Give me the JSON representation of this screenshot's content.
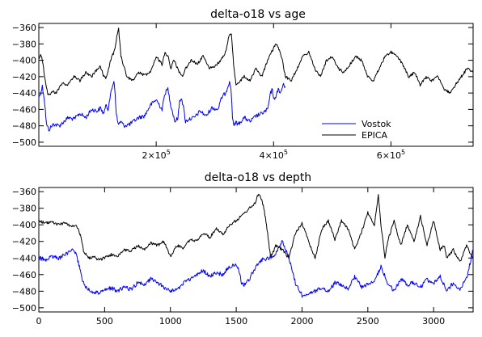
{
  "chart_data": [
    {
      "type": "line",
      "title": "delta-o18 vs age",
      "xlabel": "",
      "ylabel": "",
      "xlim": [
        0,
        740000
      ],
      "ylim": [
        -505,
        -355
      ],
      "x_ticks": [
        {
          "value": 200000,
          "mant": "2×10",
          "exp": "5"
        },
        {
          "value": 400000,
          "mant": "4×10",
          "exp": "5"
        },
        {
          "value": 600000,
          "mant": "6×10",
          "exp": "5"
        }
      ],
      "y_ticks": [
        -360,
        -380,
        -400,
        -420,
        -440,
        -460,
        -480,
        -500
      ],
      "legend": {
        "position": "bottom-right"
      },
      "series": [
        {
          "name": "Vostok",
          "color": "#0000ff",
          "x": [
            0,
            3000,
            6000,
            9000,
            11000,
            13000,
            17000,
            20000,
            25000,
            35000,
            50000,
            60000,
            70000,
            80000,
            90000,
            100000,
            105000,
            110000,
            115000,
            118000,
            120000,
            123000,
            126000,
            128000,
            130000,
            132000,
            135000,
            140000,
            145000,
            155000,
            170000,
            180000,
            190000,
            200000,
            210000,
            215000,
            220000,
            225000,
            232000,
            237000,
            240000,
            243000,
            247000,
            250000,
            255000,
            265000,
            275000,
            285000,
            295000,
            305000,
            312000,
            318000,
            322000,
            325000,
            328000,
            330000,
            333000,
            336000,
            340000,
            350000,
            360000,
            370000,
            380000,
            390000,
            395000,
            398000,
            400000,
            402000,
            405000,
            408000,
            410000,
            413000,
            416000,
            420000
          ],
          "y": [
            -445,
            -440,
            -432,
            -445,
            -460,
            -478,
            -485,
            -482,
            -478,
            -480,
            -470,
            -472,
            -465,
            -470,
            -460,
            -462,
            -458,
            -465,
            -455,
            -460,
            -450,
            -440,
            -430,
            -425,
            -440,
            -465,
            -478,
            -475,
            -480,
            -478,
            -470,
            -468,
            -455,
            -448,
            -460,
            -440,
            -435,
            -455,
            -475,
            -470,
            -450,
            -445,
            -460,
            -475,
            -472,
            -470,
            -462,
            -468,
            -458,
            -460,
            -445,
            -440,
            -432,
            -425,
            -440,
            -470,
            -480,
            -476,
            -478,
            -470,
            -475,
            -468,
            -465,
            -460,
            -440,
            -435,
            -445,
            -450,
            -440,
            -435,
            -440,
            -438,
            -430,
            -432
          ]
        },
        {
          "name": "EPICA",
          "color": "#000000",
          "x": [
            0,
            3000,
            6000,
            9000,
            12000,
            15000,
            18000,
            22000,
            30000,
            40000,
            50000,
            60000,
            70000,
            80000,
            90000,
            100000,
            105000,
            110000,
            115000,
            118000,
            122000,
            125000,
            128000,
            130000,
            133000,
            136000,
            140000,
            150000,
            160000,
            170000,
            180000,
            190000,
            200000,
            210000,
            215000,
            220000,
            225000,
            230000,
            240000,
            245000,
            250000,
            260000,
            270000,
            280000,
            290000,
            300000,
            310000,
            315000,
            320000,
            324000,
            328000,
            332000,
            336000,
            340000,
            350000,
            360000,
            370000,
            380000,
            390000,
            400000,
            405000,
            410000,
            415000,
            420000,
            430000,
            440000,
            450000,
            460000,
            470000,
            480000,
            490000,
            500000,
            510000,
            520000,
            530000,
            540000,
            550000,
            560000,
            570000,
            580000,
            590000,
            600000,
            610000,
            620000,
            630000,
            640000,
            650000,
            660000,
            670000,
            680000,
            690000,
            700000,
            710000,
            720000,
            730000,
            740000
          ],
          "y": [
            -398,
            -392,
            -400,
            -415,
            -430,
            -440,
            -442,
            -438,
            -440,
            -428,
            -430,
            -420,
            -425,
            -415,
            -420,
            -410,
            -408,
            -418,
            -422,
            -415,
            -400,
            -395,
            -390,
            -385,
            -370,
            -362,
            -395,
            -420,
            -425,
            -415,
            -418,
            -415,
            -395,
            -405,
            -390,
            -395,
            -410,
            -400,
            -415,
            -420,
            -410,
            -400,
            -405,
            -395,
            -410,
            -408,
            -400,
            -395,
            -385,
            -370,
            -368,
            -405,
            -430,
            -428,
            -420,
            -425,
            -410,
            -420,
            -400,
            -385,
            -380,
            -388,
            -400,
            -420,
            -425,
            -410,
            -395,
            -390,
            -410,
            -420,
            -400,
            -395,
            -410,
            -415,
            -405,
            -395,
            -400,
            -420,
            -425,
            -410,
            -395,
            -390,
            -395,
            -405,
            -420,
            -415,
            -430,
            -420,
            -425,
            -420,
            -435,
            -440,
            -430,
            -420,
            -410,
            -415
          ]
        }
      ]
    },
    {
      "type": "line",
      "title": "delta-o18 vs depth",
      "xlabel": "",
      "ylabel": "",
      "xlim": [
        0,
        3300
      ],
      "ylim": [
        -505,
        -355
      ],
      "x_ticks": [
        0,
        500,
        1000,
        1500,
        2000,
        2500,
        3000
      ],
      "y_ticks": [
        -360,
        -380,
        -400,
        -420,
        -440,
        -460,
        -480,
        -500
      ],
      "series": [
        {
          "name": "Vostok",
          "color": "#0000ff",
          "x": [
            0,
            50,
            100,
            150,
            200,
            250,
            280,
            300,
            320,
            340,
            360,
            380,
            400,
            450,
            500,
            550,
            600,
            650,
            700,
            750,
            800,
            850,
            900,
            950,
            1000,
            1050,
            1100,
            1150,
            1200,
            1250,
            1300,
            1350,
            1400,
            1450,
            1500,
            1520,
            1540,
            1560,
            1600,
            1650,
            1700,
            1750,
            1800,
            1830,
            1850,
            1870,
            1900,
            1950,
            2000,
            2050,
            2100,
            2150,
            2200,
            2250,
            2300,
            2350,
            2400,
            2450,
            2500,
            2550,
            2600,
            2650,
            2700,
            2750,
            2800,
            2850,
            2900,
            2950,
            3000,
            3050,
            3100,
            3150,
            3200,
            3250,
            3300
          ],
          "y": [
            -440,
            -442,
            -438,
            -440,
            -436,
            -430,
            -435,
            -445,
            -460,
            -470,
            -475,
            -478,
            -480,
            -482,
            -478,
            -476,
            -480,
            -475,
            -478,
            -470,
            -472,
            -465,
            -470,
            -475,
            -480,
            -478,
            -470,
            -466,
            -460,
            -455,
            -462,
            -458,
            -460,
            -450,
            -448,
            -455,
            -470,
            -472,
            -465,
            -450,
            -442,
            -440,
            -435,
            -425,
            -420,
            -428,
            -440,
            -470,
            -485,
            -482,
            -480,
            -476,
            -480,
            -470,
            -472,
            -478,
            -462,
            -475,
            -472,
            -468,
            -450,
            -470,
            -480,
            -465,
            -472,
            -470,
            -475,
            -466,
            -470,
            -462,
            -480,
            -470,
            -478,
            -465,
            -430
          ]
        },
        {
          "name": "EPICA",
          "color": "#000000",
          "x": [
            0,
            50,
            100,
            150,
            200,
            250,
            280,
            300,
            320,
            340,
            380,
            420,
            450,
            500,
            550,
            600,
            650,
            700,
            750,
            800,
            850,
            900,
            950,
            1000,
            1050,
            1100,
            1150,
            1200,
            1250,
            1300,
            1350,
            1400,
            1450,
            1500,
            1550,
            1600,
            1640,
            1670,
            1690,
            1710,
            1730,
            1760,
            1790,
            1800,
            1850,
            1900,
            1950,
            2000,
            2050,
            2100,
            2150,
            2200,
            2250,
            2300,
            2350,
            2400,
            2450,
            2500,
            2550,
            2580,
            2600,
            2630,
            2650,
            2700,
            2750,
            2800,
            2850,
            2900,
            2950,
            3000,
            3050,
            3080,
            3100,
            3150,
            3200,
            3250,
            3300
          ],
          "y": [
            -395,
            -398,
            -396,
            -400,
            -398,
            -402,
            -400,
            -405,
            -415,
            -432,
            -440,
            -438,
            -442,
            -440,
            -436,
            -438,
            -430,
            -432,
            -425,
            -430,
            -422,
            -425,
            -420,
            -438,
            -425,
            -428,
            -418,
            -420,
            -410,
            -415,
            -405,
            -412,
            -400,
            -395,
            -388,
            -380,
            -375,
            -362,
            -368,
            -380,
            -400,
            -438,
            -430,
            -425,
            -430,
            -440,
            -410,
            -398,
            -420,
            -440,
            -405,
            -395,
            -418,
            -395,
            -405,
            -430,
            -410,
            -385,
            -400,
            -365,
            -400,
            -440,
            -420,
            -395,
            -425,
            -400,
            -420,
            -390,
            -425,
            -395,
            -430,
            -425,
            -440,
            -430,
            -445,
            -425,
            -440
          ]
        }
      ]
    }
  ]
}
